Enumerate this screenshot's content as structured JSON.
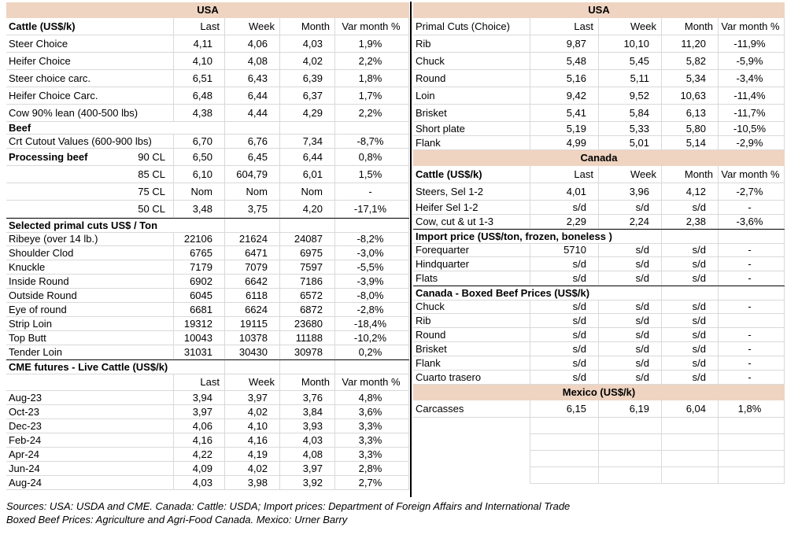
{
  "colors": {
    "band": "#EFD4C1",
    "grid": "#D9D9D9",
    "dark": "#1A1A1A",
    "divider": "#000000",
    "text": "#000000"
  },
  "columns": [
    "Last",
    "Week",
    "Month",
    "Var month %"
  ],
  "left": {
    "rows": [
      {
        "type": "band",
        "label": "USA"
      },
      {
        "type": "header",
        "label": "Cattle (US$/k)",
        "bold": true
      },
      {
        "type": "row",
        "label": "Steer Choice",
        "values": [
          "4,11",
          "4,06",
          "4,03",
          "1,9%"
        ]
      },
      {
        "type": "row",
        "label": "Heifer Choice",
        "values": [
          "4,10",
          "4,08",
          "4,02",
          "2,2%"
        ]
      },
      {
        "type": "row",
        "label": "Steer choice carc.",
        "values": [
          "6,51",
          "6,43",
          "6,39",
          "1,8%"
        ]
      },
      {
        "type": "row",
        "label": "Heifer Choice Carc.",
        "values": [
          "6,48",
          "6,44",
          "6,37",
          "1,7%"
        ]
      },
      {
        "type": "row",
        "label": "Cow 90% lean (400-500 lbs)",
        "values": [
          "4,38",
          "4,44",
          "4,29",
          "2,2%"
        ]
      },
      {
        "type": "section",
        "label": "Beef",
        "small": true
      },
      {
        "type": "row",
        "dense": true,
        "label": "Crt Cutout Values (600-900 lbs)",
        "values": [
          "6,70",
          "6,76",
          "7,34",
          "-8,7%"
        ]
      },
      {
        "type": "split",
        "label": "Processing beef",
        "sublabel": "90 CL",
        "values": [
          "6,50",
          "6,45",
          "6,44",
          "0,8%"
        ]
      },
      {
        "type": "rowright",
        "label": "85 CL",
        "values": [
          "6,10",
          "604,79",
          "6,01",
          "1,5%"
        ]
      },
      {
        "type": "rowright",
        "label": "75 CL",
        "values": [
          "Nom",
          "Nom",
          "Nom",
          "-"
        ]
      },
      {
        "type": "rowright",
        "label": "50 CL",
        "values": [
          "3,48",
          "3,75",
          "4,20",
          "-17,1%"
        ]
      },
      {
        "type": "section",
        "label": "Selected primal cuts US$ / Ton",
        "topborder": true
      },
      {
        "type": "row",
        "dense": true,
        "label": "Ribeye (over 14 lb.)",
        "values": [
          "22106",
          "21624",
          "24087",
          "-8,2%"
        ]
      },
      {
        "type": "row",
        "dense": true,
        "label": "Shoulder Clod",
        "values": [
          "6765",
          "6471",
          "6975",
          "-3,0%"
        ]
      },
      {
        "type": "row",
        "dense": true,
        "label": "Knuckle",
        "values": [
          "7179",
          "7079",
          "7597",
          "-5,5%"
        ]
      },
      {
        "type": "row",
        "dense": true,
        "label": "Inside Round",
        "values": [
          "6902",
          "6642",
          "7186",
          "-3,9%"
        ]
      },
      {
        "type": "row",
        "dense": true,
        "label": "Outside Round",
        "values": [
          "6045",
          "6118",
          "6572",
          "-8,0%"
        ]
      },
      {
        "type": "row",
        "dense": true,
        "label": "Eye of round",
        "values": [
          "6681",
          "6624",
          "6872",
          "-2,8%"
        ]
      },
      {
        "type": "row",
        "dense": true,
        "label": "Strip Loin",
        "values": [
          "19312",
          "19115",
          "23680",
          "-18,4%"
        ]
      },
      {
        "type": "row",
        "dense": true,
        "label": "Top Butt",
        "values": [
          "10043",
          "10378",
          "11188",
          "-10,2%"
        ]
      },
      {
        "type": "row",
        "dense": true,
        "label": "Tender Loin",
        "values": [
          "31031",
          "30430",
          "30978",
          "0,2%"
        ]
      },
      {
        "type": "section",
        "label": "CME futures - Live Cattle (US$/k)",
        "topborder": true
      },
      {
        "type": "header",
        "label": "",
        "bold": false
      },
      {
        "type": "row",
        "dense": true,
        "label": "Aug-23",
        "values": [
          "3,94",
          "3,97",
          "3,76",
          "4,8%"
        ]
      },
      {
        "type": "row",
        "dense": true,
        "label": "Oct-23",
        "values": [
          "3,97",
          "4,02",
          "3,84",
          "3,6%"
        ]
      },
      {
        "type": "row",
        "dense": true,
        "label": "Dec-23",
        "values": [
          "4,06",
          "4,10",
          "3,93",
          "3,3%"
        ]
      },
      {
        "type": "row",
        "dense": true,
        "label": "Feb-24",
        "values": [
          "4,16",
          "4,16",
          "4,03",
          "3,3%"
        ]
      },
      {
        "type": "row",
        "dense": true,
        "label": "Apr-24",
        "values": [
          "4,22",
          "4,19",
          "4,08",
          "3,3%"
        ]
      },
      {
        "type": "row",
        "dense": true,
        "label": "Jun-24",
        "values": [
          "4,09",
          "4,02",
          "3,97",
          "2,8%"
        ]
      },
      {
        "type": "row",
        "dense": true,
        "label": "Aug-24",
        "values": [
          "4,03",
          "3,98",
          "3,92",
          "2,7%"
        ]
      }
    ]
  },
  "right": {
    "rows": [
      {
        "type": "band",
        "label": "USA"
      },
      {
        "type": "header",
        "label": "Primal Cuts (Choice)",
        "bold": false
      },
      {
        "type": "row",
        "label": "Rib",
        "values": [
          "9,87",
          "10,10",
          "11,20",
          "-11,9%"
        ]
      },
      {
        "type": "row",
        "label": "Chuck",
        "values": [
          "5,48",
          "5,45",
          "5,82",
          "-5,9%"
        ]
      },
      {
        "type": "row",
        "label": "Round",
        "values": [
          "5,16",
          "5,11",
          "5,34",
          "-3,4%"
        ]
      },
      {
        "type": "row",
        "label": "Loin",
        "values": [
          "9,42",
          "9,52",
          "10,63",
          "-11,4%"
        ]
      },
      {
        "type": "row",
        "label": "Brisket",
        "values": [
          "5,41",
          "5,84",
          "6,13",
          "-11,7%"
        ]
      },
      {
        "type": "row",
        "dense": true,
        "label": "Short plate",
        "values": [
          "5,19",
          "5,33",
          "5,80",
          "-10,5%"
        ]
      },
      {
        "type": "row",
        "dense": true,
        "label": "Flank",
        "values": [
          "4,99",
          "5,01",
          "5,14",
          "-2,9%"
        ]
      },
      {
        "type": "band",
        "label": "Canada"
      },
      {
        "type": "header",
        "label": "Cattle (US$/k)",
        "bold": true
      },
      {
        "type": "row",
        "label": "Steers, Sel 1-2",
        "values": [
          "4,01",
          "3,96",
          "4,12",
          "-2,7%"
        ]
      },
      {
        "type": "row",
        "dense": true,
        "label": "Heifer Sel 1-2",
        "values": [
          "s/d",
          "s/d",
          "s/d",
          "-"
        ]
      },
      {
        "type": "row",
        "dense": true,
        "label": "Cow, cut & ut 1-3",
        "values": [
          "2,29",
          "2,24",
          "2,38",
          "-3,6%"
        ]
      },
      {
        "type": "section",
        "label": "Import price (US$/ton, frozen, boneless )",
        "topborder": true
      },
      {
        "type": "row",
        "dense": true,
        "label": "Forequarter",
        "values": [
          "5710",
          "s/d",
          "s/d",
          "-"
        ]
      },
      {
        "type": "row",
        "dense": true,
        "label": "Hindquarter",
        "values": [
          "s/d",
          "s/d",
          "s/d",
          "-"
        ]
      },
      {
        "type": "row",
        "dense": true,
        "label": "Flats",
        "values": [
          "s/d",
          "s/d",
          "s/d",
          "-"
        ]
      },
      {
        "type": "section",
        "label": "Canada - Boxed Beef Prices (US$/k)",
        "topborder": true
      },
      {
        "type": "row",
        "dense": true,
        "label": "Chuck",
        "values": [
          "s/d",
          "s/d",
          "s/d",
          "-"
        ]
      },
      {
        "type": "row",
        "dense": true,
        "label": "Rib",
        "values": [
          "s/d",
          "s/d",
          "s/d",
          ""
        ]
      },
      {
        "type": "row",
        "dense": true,
        "label": "Round",
        "values": [
          "s/d",
          "s/d",
          "s/d",
          "-"
        ]
      },
      {
        "type": "row",
        "dense": true,
        "label": "Brisket",
        "values": [
          "s/d",
          "s/d",
          "s/d",
          "-"
        ]
      },
      {
        "type": "row",
        "dense": true,
        "label": "Flank",
        "values": [
          "s/d",
          "s/d",
          "s/d",
          "-"
        ]
      },
      {
        "type": "row",
        "dense": true,
        "label": "Cuarto trasero",
        "values": [
          "s/d",
          "s/d",
          "s/d",
          "-"
        ]
      },
      {
        "type": "band",
        "label": "Mexico (US$/k)"
      },
      {
        "type": "row",
        "label": "Carcasses",
        "values": [
          "6,15",
          "6,19",
          "6,04",
          "1,8%"
        ]
      },
      {
        "type": "empty"
      },
      {
        "type": "empty"
      },
      {
        "type": "empty"
      },
      {
        "type": "empty"
      }
    ]
  },
  "footer": {
    "line1": "Sources: USA: USDA and CME. Canada: Cattle: USDA; Import prices: Department of Foreign Affairs and International Trade",
    "line2": "Boxed Beef Prices: Agriculture and Agri-Food Canada. Mexico: Urner Barry"
  }
}
